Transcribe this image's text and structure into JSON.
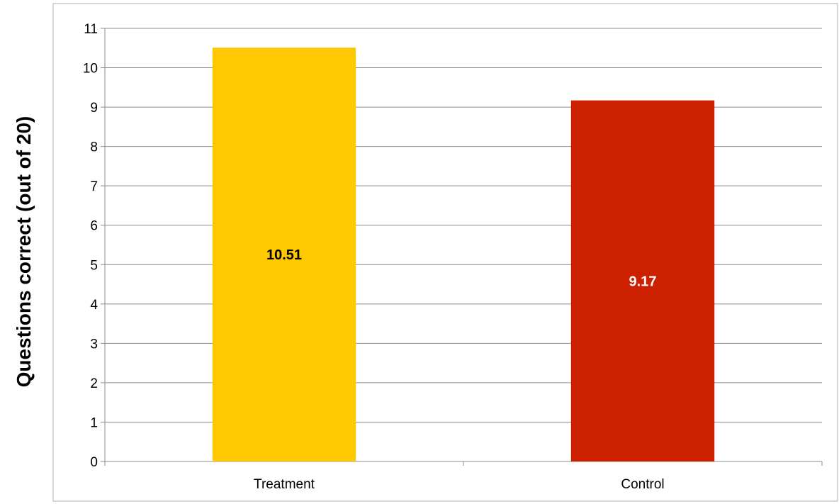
{
  "chart_data": {
    "type": "bar",
    "title": "",
    "xlabel": "",
    "ylabel": "Questions correct (out of 20)",
    "ylim": [
      0,
      11
    ],
    "yticks": [
      0,
      1,
      2,
      3,
      4,
      5,
      6,
      7,
      8,
      9,
      10,
      11
    ],
    "categories": [
      "Treatment",
      "Control"
    ],
    "values": [
      10.51,
      9.17
    ],
    "data_labels": [
      "10.51",
      "9.17"
    ],
    "bar_colors": [
      "#ffc800",
      "#cc2000"
    ],
    "data_label_colors": [
      "#000000",
      "#ffffff"
    ],
    "grid": true,
    "legend": "none"
  }
}
